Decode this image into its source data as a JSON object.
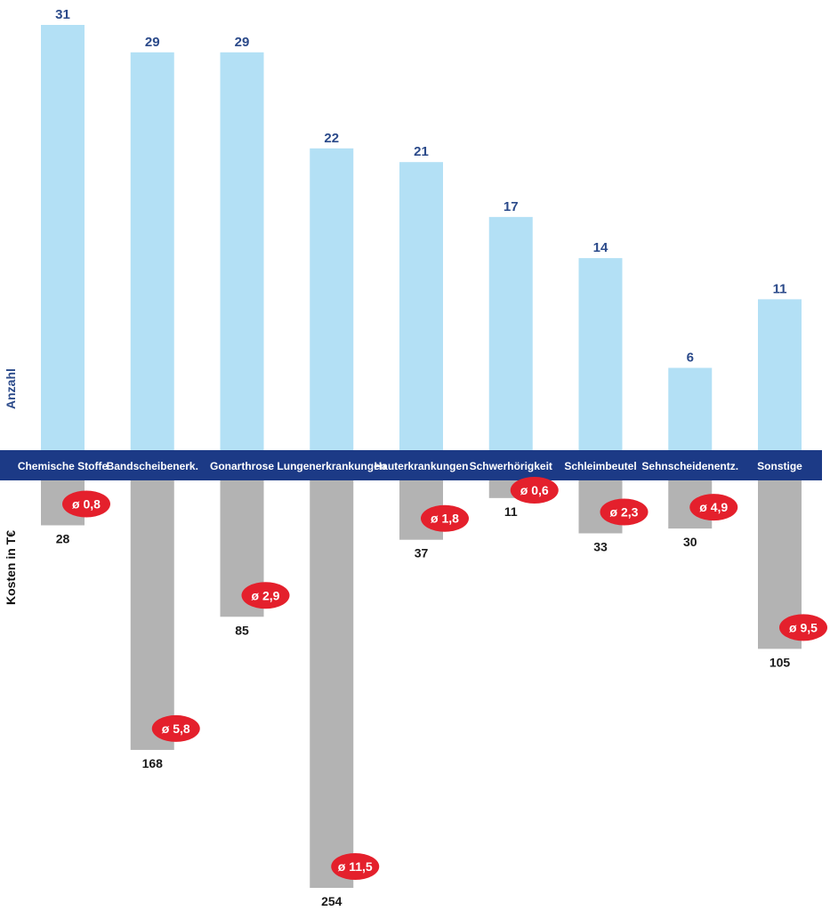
{
  "chart_data": {
    "type": "bar",
    "categories": [
      "Chemische Stoffe",
      "Bandscheibenerk.",
      "Gonarthrose",
      "Lungenerkrankungen",
      "Hauterkrankungen",
      "Schwerhörigkeit",
      "Schleimbeutel",
      "Sehnscheidenentz.",
      "Sonstige"
    ],
    "series": [
      {
        "name": "Anzahl",
        "values": [
          31,
          29,
          29,
          22,
          21,
          17,
          14,
          6,
          11
        ],
        "color": "#b3e0f5"
      },
      {
        "name": "Kosten in T€",
        "values": [
          28,
          168,
          85,
          254,
          37,
          11,
          33,
          30,
          105
        ],
        "color": "#b3b3b3"
      }
    ],
    "averages": [
      "ø 0,8",
      "ø 5,8",
      "ø 2,9",
      "ø 11,5",
      "ø 1,8",
      "ø 0,6",
      "ø 2,3",
      "ø 4,9",
      "ø 9,5"
    ],
    "ylabel_top": "Anzahl",
    "ylabel_bottom": "Kosten in T€",
    "band_color": "#1c3a86",
    "avg_badge_color": "#e4202c",
    "grid": false
  }
}
